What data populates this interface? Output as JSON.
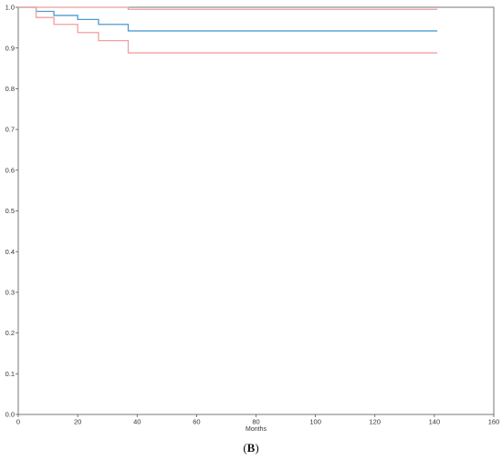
{
  "chart_data": {
    "type": "line",
    "title": "",
    "xlabel": "Months",
    "ylabel": "",
    "xlim": [
      0,
      160
    ],
    "ylim": [
      0.0,
      1.0
    ],
    "x_ticks": [
      0,
      20,
      40,
      60,
      80,
      100,
      120,
      140,
      160
    ],
    "y_ticks": [
      "0.0",
      "0.1",
      "0.2",
      "0.3",
      "0.4",
      "0.5",
      "0.6",
      "0.7",
      "0.8",
      "0.9",
      "1.0"
    ],
    "grid": false,
    "series": [
      {
        "color": "#e8a09a",
        "style": "step",
        "x": [
          0,
          37,
          141
        ],
        "y": [
          1.0,
          0.995,
          0.995
        ]
      },
      {
        "color": "#4f9bd0",
        "style": "step",
        "x": [
          0,
          6,
          12,
          20,
          27,
          37,
          141
        ],
        "y": [
          1.0,
          0.99,
          0.98,
          0.97,
          0.958,
          0.942,
          0.942
        ]
      },
      {
        "color": "#f0a0a0",
        "style": "step",
        "x": [
          0,
          6,
          12,
          20,
          27,
          37,
          141
        ],
        "y": [
          1.0,
          0.975,
          0.958,
          0.938,
          0.918,
          0.888,
          0.888
        ]
      }
    ]
  },
  "panel_label": {
    "open": "(",
    "letter": "B",
    "close": ")"
  }
}
